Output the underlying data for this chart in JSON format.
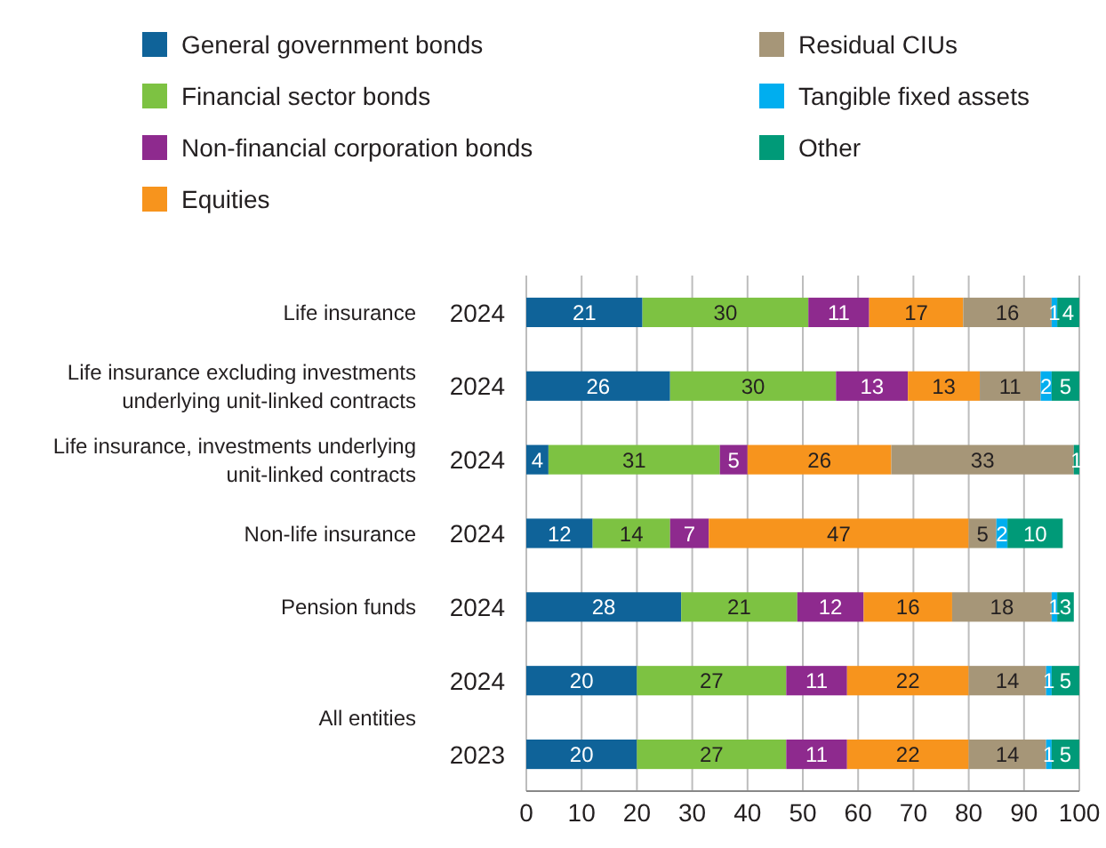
{
  "chart_data": {
    "type": "bar",
    "orientation": "horizontal",
    "stacked": true,
    "categories": [
      "2024",
      "2024",
      "2024",
      "2024",
      "2024",
      "2024",
      "2023"
    ],
    "annotations": [
      "Life insurance",
      "Life insurance excluding investments underlying unit-linked contracts",
      "Life insurance, investments underlying unit-linked contracts",
      "Non-life insurance",
      "Pension funds",
      "All entities"
    ],
    "series": [
      {
        "name": "General government bonds",
        "color": "#0f6399",
        "values": [
          21,
          26,
          4,
          12,
          28,
          20,
          20
        ]
      },
      {
        "name": "Financial sector bonds",
        "color": "#7dc242",
        "values": [
          30,
          30,
          31,
          14,
          21,
          27,
          27
        ]
      },
      {
        "name": "Non-financial corporation bonds",
        "color": "#8e2a8e",
        "values": [
          11,
          13,
          5,
          7,
          12,
          11,
          11
        ]
      },
      {
        "name": "Equities",
        "color": "#f7941d",
        "values": [
          17,
          13,
          26,
          47,
          16,
          22,
          22
        ]
      },
      {
        "name": "Residual CIUs",
        "color": "#a69678",
        "values": [
          16,
          11,
          33,
          5,
          18,
          14,
          14
        ]
      },
      {
        "name": "Tangible fixed assets",
        "color": "#00aeef",
        "values": [
          1,
          2,
          null,
          2,
          1,
          1,
          1
        ]
      },
      {
        "name": "Other",
        "color": "#009a78",
        "values": [
          4,
          5,
          1,
          10,
          3,
          5,
          5
        ]
      }
    ],
    "xlim": [
      0,
      100
    ],
    "xticks": [
      0,
      10,
      20,
      30,
      40,
      50,
      60,
      70,
      80,
      90,
      100
    ],
    "grid": "x",
    "legend": "top",
    "data_labels": true
  }
}
